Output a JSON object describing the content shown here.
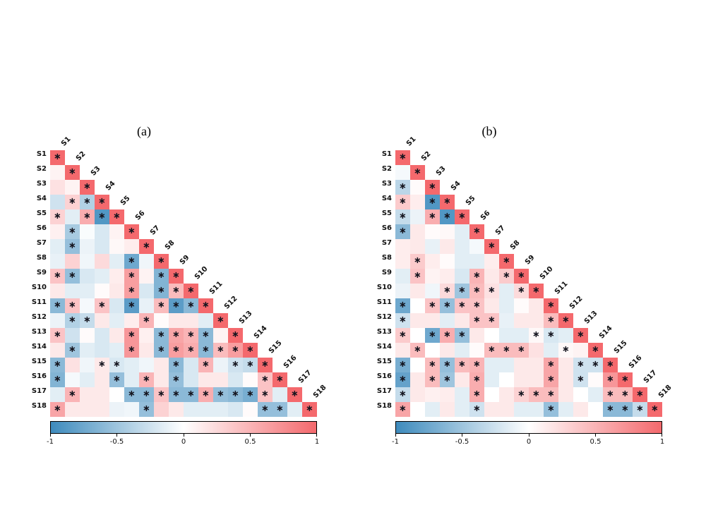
{
  "figure": {
    "significance_marker": "∗",
    "marker_color": "#14141e",
    "label_color": "#111111",
    "background": "#ffffff",
    "colormap": {
      "negative_end": "#3e8bbd",
      "midpoint": "#ffffff",
      "positive_end": "#f4696d"
    }
  },
  "chart_data": [
    {
      "type": "heatmap",
      "title": "(a)",
      "triangle": "lower",
      "value_range": [
        -1,
        1
      ],
      "legend_position": "bottom-colorbar",
      "labels": [
        "S1",
        "S2",
        "S3",
        "S4",
        "S5",
        "S6",
        "S7",
        "S8",
        "S9",
        "S10",
        "S11",
        "S12",
        "S13",
        "S14",
        "S15",
        "S16",
        "S17",
        "S18"
      ],
      "colorbar": {
        "tick_labels": [
          "-1",
          "-0.5",
          "0",
          "0.5",
          "1"
        ],
        "tick_values": [
          -1,
          -0.5,
          0,
          0.5,
          1
        ]
      },
      "values": [
        [
          1
        ],
        [
          0.08,
          1
        ],
        [
          0.2,
          0.08,
          1
        ],
        [
          -0.25,
          0.3,
          -0.4,
          1
        ],
        [
          0.3,
          -0.15,
          0.55,
          -0.9,
          1
        ],
        [
          0.1,
          -0.45,
          -0.03,
          -0.2,
          0.08,
          1
        ],
        [
          -0.15,
          -0.55,
          -0.1,
          -0.2,
          0.05,
          0.12,
          1
        ],
        [
          -0.12,
          0.3,
          -0.08,
          0.25,
          -0.15,
          -0.75,
          -0.08,
          1
        ],
        [
          0.4,
          -0.55,
          -0.2,
          -0.15,
          0.12,
          0.65,
          0.08,
          -0.65,
          1
        ],
        [
          0.15,
          -0.15,
          -0.15,
          0.03,
          0.15,
          0.65,
          -0.2,
          -0.65,
          0.45,
          1
        ],
        [
          -0.6,
          0.4,
          -0.05,
          0.4,
          -0.2,
          -0.85,
          -0.12,
          0.45,
          -0.85,
          -0.6,
          1
        ],
        [
          -0.1,
          -0.4,
          -0.3,
          0.15,
          -0.15,
          0.12,
          0.5,
          0.03,
          0.15,
          0.15,
          -0.15,
          1
        ],
        [
          0.4,
          -0.25,
          0.03,
          -0.2,
          0.15,
          0.7,
          0.1,
          -0.6,
          0.6,
          0.5,
          -0.6,
          0.08,
          1
        ],
        [
          0.15,
          -0.5,
          -0.15,
          -0.2,
          -0.15,
          0.7,
          0.15,
          -0.6,
          0.65,
          0.55,
          -0.6,
          0.45,
          0.65,
          1
        ],
        [
          -0.6,
          0.2,
          -0.08,
          0.15,
          -0.2,
          -0.15,
          -0.08,
          0.15,
          -0.6,
          -0.2,
          0.5,
          -0.1,
          -0.25,
          -0.3,
          1
        ],
        [
          -0.65,
          -0.05,
          -0.15,
          0.15,
          -0.55,
          -0.15,
          0.5,
          0.15,
          -0.55,
          -0.2,
          0.15,
          0.15,
          -0.2,
          0.03,
          0.4,
          1
        ],
        [
          -0.15,
          0.5,
          0.15,
          0.15,
          0,
          -0.6,
          -0.6,
          0.4,
          -0.6,
          -0.6,
          0.55,
          -0.55,
          -0.6,
          -0.7,
          0.4,
          -0.15,
          1
        ],
        [
          0.6,
          0.15,
          0.15,
          0.15,
          -0.1,
          -0.08,
          -0.55,
          0.3,
          0.15,
          -0.15,
          -0.15,
          -0.15,
          -0.2,
          0.03,
          -0.55,
          -0.55,
          -0.15,
          1
        ]
      ],
      "significant": [
        [
          1
        ],
        [
          0,
          1
        ],
        [
          0,
          0,
          1
        ],
        [
          0,
          1,
          1,
          1
        ],
        [
          1,
          0,
          1,
          1,
          1
        ],
        [
          0,
          1,
          0,
          0,
          0,
          1
        ],
        [
          0,
          1,
          0,
          0,
          0,
          0,
          1
        ],
        [
          0,
          0,
          0,
          0,
          0,
          1,
          0,
          1
        ],
        [
          1,
          1,
          0,
          0,
          0,
          1,
          0,
          1,
          1
        ],
        [
          0,
          0,
          0,
          0,
          0,
          1,
          0,
          1,
          1,
          1
        ],
        [
          1,
          1,
          0,
          1,
          0,
          1,
          0,
          1,
          1,
          1,
          1
        ],
        [
          0,
          1,
          1,
          0,
          0,
          0,
          1,
          0,
          0,
          0,
          0,
          1
        ],
        [
          1,
          0,
          0,
          0,
          0,
          1,
          0,
          1,
          1,
          1,
          1,
          0,
          1
        ],
        [
          0,
          1,
          0,
          0,
          0,
          1,
          0,
          1,
          1,
          1,
          1,
          1,
          1,
          1
        ],
        [
          1,
          0,
          0,
          1,
          1,
          0,
          0,
          0,
          1,
          0,
          1,
          0,
          1,
          1,
          1
        ],
        [
          1,
          0,
          0,
          0,
          1,
          0,
          1,
          0,
          1,
          0,
          0,
          0,
          0,
          0,
          1,
          1
        ],
        [
          0,
          1,
          0,
          0,
          0,
          1,
          1,
          1,
          1,
          1,
          1,
          1,
          1,
          1,
          1,
          0,
          1
        ],
        [
          1,
          0,
          0,
          0,
          0,
          0,
          1,
          0,
          0,
          0,
          0,
          0,
          0,
          0,
          1,
          1,
          0,
          1
        ]
      ]
    },
    {
      "type": "heatmap",
      "title": "(b)",
      "triangle": "lower",
      "value_range": [
        -1,
        1
      ],
      "legend_position": "bottom-colorbar",
      "labels": [
        "S1",
        "S2",
        "S3",
        "S4",
        "S5",
        "S6",
        "S7",
        "S8",
        "S9",
        "S10",
        "S11",
        "S12",
        "S13",
        "S14",
        "S15",
        "S16",
        "S17",
        "S18"
      ],
      "colorbar": {
        "tick_labels": [
          "-1",
          "-0.5",
          "0",
          "0.5",
          "1"
        ],
        "tick_values": [
          -1,
          -0.5,
          0,
          0.5,
          1
        ]
      },
      "values": [
        [
          1
        ],
        [
          -0.05,
          1
        ],
        [
          -0.35,
          0.03,
          1
        ],
        [
          0.35,
          0.12,
          -0.9,
          1
        ],
        [
          -0.3,
          -0.1,
          0.55,
          -0.9,
          1
        ],
        [
          -0.6,
          0.15,
          0.03,
          0.05,
          -0.15,
          1
        ],
        [
          0.12,
          0.15,
          -0.12,
          0.15,
          -0.15,
          -0.05,
          1
        ],
        [
          0.12,
          0.35,
          0.12,
          0.03,
          -0.15,
          -0.15,
          0.12,
          1
        ],
        [
          -0.15,
          0.4,
          0.08,
          0.12,
          -0.2,
          0.5,
          0.15,
          0.35,
          1
        ],
        [
          -0.1,
          0.15,
          -0.08,
          0.25,
          -0.5,
          0.45,
          0.2,
          -0.15,
          0.25,
          1
        ],
        [
          -0.75,
          0,
          0.4,
          -0.55,
          0.4,
          0.4,
          0.15,
          -0.15,
          0.03,
          0.15,
          1
        ],
        [
          -0.25,
          0.15,
          0.15,
          -0.15,
          0.15,
          0.4,
          0.4,
          -0.12,
          0.15,
          0.15,
          0.45,
          1
        ],
        [
          0.35,
          0,
          -0.75,
          0.55,
          -0.55,
          0.15,
          0,
          -0.15,
          -0.15,
          0.05,
          -0.2,
          -0.15,
          1
        ],
        [
          0.15,
          0.45,
          0,
          0.15,
          -0.15,
          0.03,
          0.45,
          0.45,
          0.45,
          0.2,
          -0.15,
          0.05,
          0.08,
          1
        ],
        [
          -0.7,
          0,
          0.45,
          -0.55,
          0.45,
          0.5,
          -0.15,
          -0.15,
          0.15,
          0.15,
          0.6,
          0.15,
          -0.25,
          -0.25,
          1
        ],
        [
          -0.8,
          0.15,
          0.45,
          -0.5,
          0.15,
          0.55,
          -0.15,
          0,
          0.15,
          0.15,
          0.6,
          0.15,
          -0.25,
          0.03,
          0.7,
          1
        ],
        [
          -0.3,
          0.15,
          0.1,
          0.12,
          -0.15,
          0.55,
          0,
          0.15,
          0.3,
          0.45,
          0.45,
          0.15,
          0,
          -0.15,
          0.45,
          0.45,
          1
        ],
        [
          0.6,
          0,
          -0.15,
          0.15,
          -0.15,
          -0.25,
          0.15,
          0.15,
          -0.15,
          -0.15,
          -0.55,
          -0.15,
          0.15,
          0,
          -0.6,
          -0.6,
          -0.3,
          1
        ]
      ],
      "significant": [
        [
          1
        ],
        [
          0,
          1
        ],
        [
          1,
          0,
          1
        ],
        [
          1,
          0,
          1,
          1
        ],
        [
          1,
          0,
          1,
          1,
          1
        ],
        [
          1,
          0,
          0,
          0,
          0,
          1
        ],
        [
          0,
          0,
          0,
          0,
          0,
          0,
          1
        ],
        [
          0,
          1,
          0,
          0,
          0,
          0,
          0,
          1
        ],
        [
          0,
          1,
          0,
          0,
          0,
          1,
          0,
          1,
          1
        ],
        [
          0,
          0,
          0,
          1,
          1,
          1,
          1,
          0,
          1,
          1
        ],
        [
          1,
          0,
          1,
          1,
          1,
          1,
          0,
          0,
          0,
          0,
          1
        ],
        [
          1,
          0,
          0,
          0,
          0,
          1,
          1,
          0,
          0,
          0,
          1,
          1
        ],
        [
          1,
          0,
          1,
          1,
          1,
          0,
          0,
          0,
          0,
          1,
          1,
          0,
          1
        ],
        [
          0,
          1,
          0,
          0,
          0,
          0,
          1,
          1,
          1,
          0,
          0,
          1,
          0,
          1
        ],
        [
          1,
          0,
          1,
          1,
          1,
          1,
          0,
          0,
          0,
          0,
          1,
          0,
          1,
          1,
          1
        ],
        [
          1,
          0,
          1,
          1,
          0,
          1,
          0,
          0,
          0,
          0,
          1,
          0,
          1,
          0,
          1,
          1
        ],
        [
          1,
          0,
          0,
          0,
          0,
          1,
          0,
          0,
          1,
          1,
          1,
          0,
          0,
          0,
          1,
          1,
          1
        ],
        [
          1,
          0,
          0,
          0,
          0,
          1,
          0,
          0,
          0,
          0,
          1,
          0,
          0,
          0,
          1,
          1,
          1,
          1
        ]
      ]
    }
  ]
}
